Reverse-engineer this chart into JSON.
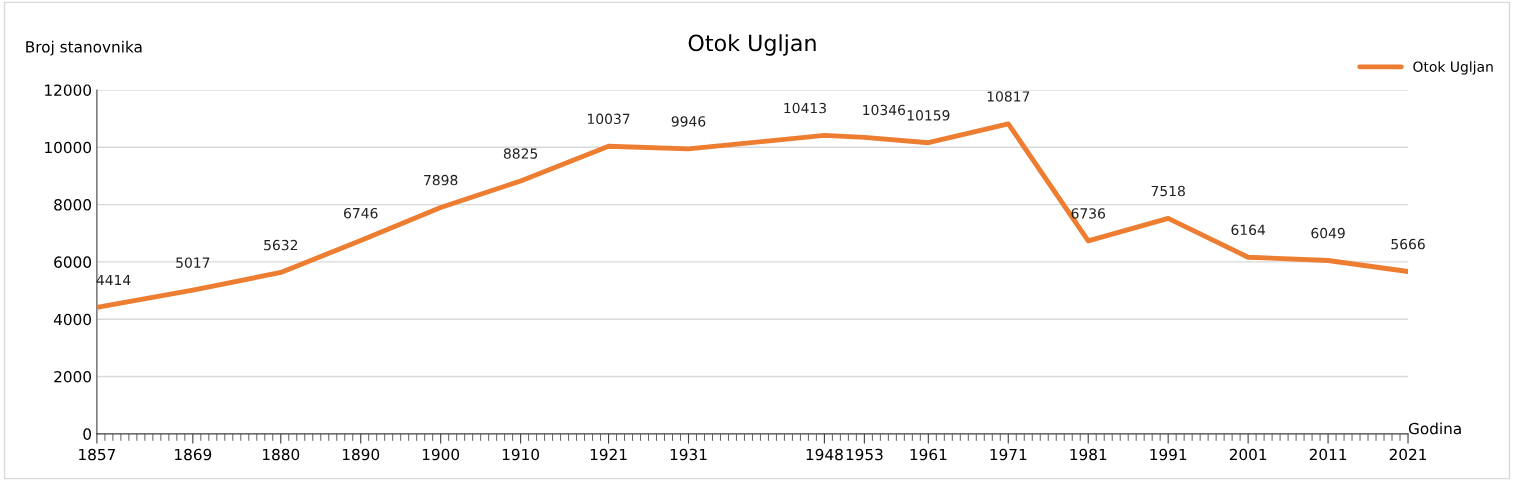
{
  "chart_data": {
    "type": "line",
    "title": "Otok Ugljan",
    "xlabel": "Godina",
    "ylabel": "Broj stanovnika",
    "x": [
      1857,
      1869,
      1880,
      1890,
      1900,
      1910,
      1921,
      1931,
      1948,
      1953,
      1961,
      1971,
      1981,
      1991,
      2001,
      2011,
      2021
    ],
    "series": [
      {
        "name": "Otok Ugljan",
        "color": "#ed7d31",
        "values": [
          4414,
          5017,
          5632,
          6746,
          7898,
          8825,
          10037,
          9946,
          10413,
          10346,
          10159,
          10817,
          6736,
          7518,
          6164,
          6049,
          5666
        ]
      }
    ],
    "xlim": [
      1857,
      2021
    ],
    "xticks": [
      1857,
      1869,
      1880,
      1890,
      1900,
      1910,
      1921,
      1931,
      1948,
      1953,
      1961,
      1971,
      1981,
      1991,
      2001,
      2011,
      2021
    ],
    "ylim": [
      0,
      12000
    ],
    "yticks": [
      0,
      2000,
      4000,
      6000,
      8000,
      10000,
      12000
    ],
    "grid": "y",
    "legend": "top right",
    "data_labels": true,
    "marker": "none",
    "line_style": "solid"
  }
}
